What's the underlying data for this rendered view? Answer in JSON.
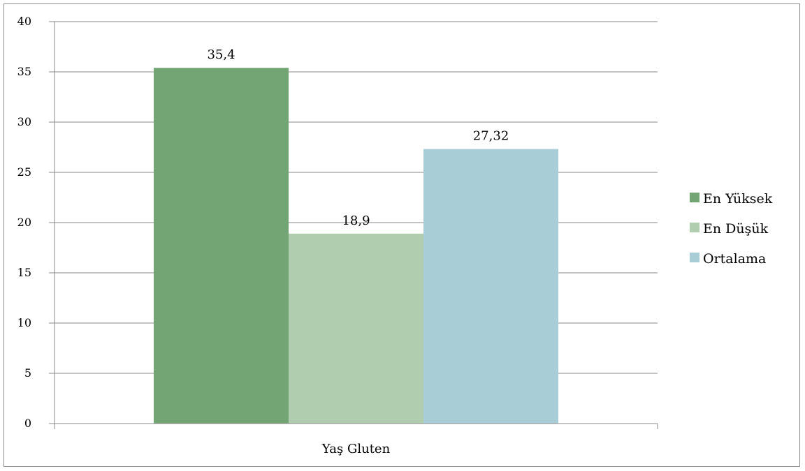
{
  "chart_data": {
    "type": "bar",
    "categories": [
      "Yaş Gluten"
    ],
    "series": [
      {
        "name": "En Yüksek",
        "values": [
          35.4
        ],
        "label": "35,4",
        "color": "#72a474"
      },
      {
        "name": "En Düşük",
        "values": [
          18.9
        ],
        "label": "18,9",
        "color": "#b1cdaf"
      },
      {
        "name": "Ortalama",
        "values": [
          27.32
        ],
        "label": "27,32",
        "color": "#a8cdd6"
      }
    ],
    "y_ticks": [
      "0",
      "5",
      "10",
      "15",
      "20",
      "25",
      "30",
      "35",
      "40"
    ],
    "ylim": [
      0,
      40
    ],
    "grid": true,
    "legend_position": "right",
    "title": "",
    "xlabel": "",
    "ylabel": ""
  }
}
